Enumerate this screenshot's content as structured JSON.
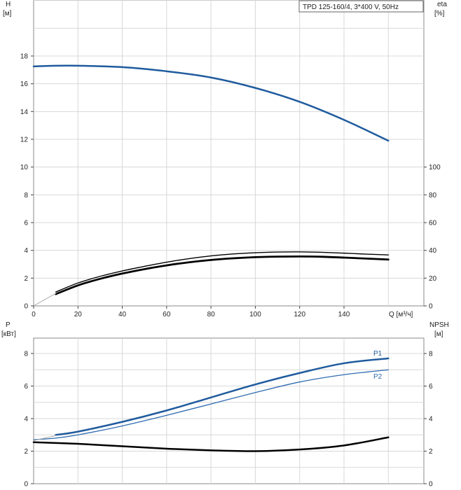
{
  "chart_data": [
    {
      "type": "line",
      "title": "TPD 125-160/4, 3*400 V, 50Hz",
      "xlabel": "Q [м³/ч]",
      "xlim": [
        0,
        160
      ],
      "x_ticks": [
        "0",
        "20",
        "40",
        "60",
        "80",
        "100",
        "120",
        "140"
      ],
      "y_axes": {
        "left": {
          "label_line1": "H",
          "label_line2": "[м]",
          "ylim": [
            0,
            20
          ],
          "ticks": [
            "0",
            "2",
            "4",
            "6",
            "8",
            "10",
            "12",
            "14",
            "16",
            "18"
          ]
        },
        "right": {
          "label_line1": "eta",
          "label_line2": "[%]",
          "ylim": [
            0,
            100
          ],
          "ticks": [
            "0",
            "20",
            "40",
            "60",
            "80",
            "100"
          ]
        }
      },
      "grid": true,
      "series": [
        {
          "axis": "left",
          "color": "#1f5b9e",
          "width": 2.5,
          "points": [
            [
              0,
              17.25
            ],
            [
              10,
              17.3
            ],
            [
              20,
              17.3
            ],
            [
              40,
              17.2
            ],
            [
              60,
              16.9
            ],
            [
              80,
              16.45
            ],
            [
              100,
              15.7
            ],
            [
              120,
              14.7
            ],
            [
              140,
              13.4
            ],
            [
              160,
              11.9
            ]
          ]
        },
        {
          "axis": "right",
          "color": "#000000",
          "width": 1.4,
          "points": [
            [
              10,
              10
            ],
            [
              20,
              16.5
            ],
            [
              30,
              21.3
            ],
            [
              40,
              25.2
            ],
            [
              50,
              28.5
            ],
            [
              60,
              31.5
            ],
            [
              70,
              34
            ],
            [
              80,
              36
            ],
            [
              90,
              37.4
            ],
            [
              100,
              38.3
            ],
            [
              110,
              38.8
            ],
            [
              120,
              38.9
            ],
            [
              130,
              38.6
            ],
            [
              140,
              38
            ],
            [
              150,
              37.3
            ],
            [
              160,
              36.7
            ]
          ]
        },
        {
          "axis": "right",
          "color": "#000000",
          "width": 2.8,
          "points": [
            [
              10,
              8.5
            ],
            [
              20,
              14.8
            ],
            [
              30,
              19.5
            ],
            [
              40,
              23.3
            ],
            [
              50,
              26.5
            ],
            [
              60,
              29.2
            ],
            [
              70,
              31.4
            ],
            [
              80,
              33.1
            ],
            [
              90,
              34.3
            ],
            [
              100,
              35.1
            ],
            [
              110,
              35.5
            ],
            [
              120,
              35.6
            ],
            [
              130,
              35.4
            ],
            [
              140,
              34.8
            ],
            [
              150,
              34.1
            ],
            [
              160,
              33.4
            ]
          ]
        },
        {
          "axis": "right",
          "color": "#aaaaaa",
          "width": 1,
          "points": [
            [
              0,
              0
            ],
            [
              10,
              9
            ]
          ]
        }
      ]
    },
    {
      "type": "line",
      "xlim": [
        0,
        160
      ],
      "y_axes": {
        "left": {
          "label_line1": "P",
          "label_line2": "[кВт]",
          "ylim": [
            0,
            9
          ],
          "ticks": [
            "0",
            "2",
            "4",
            "6",
            "8"
          ]
        },
        "right": {
          "label_line1": "NPSH",
          "label_line2": "[м]",
          "ylim": [
            0,
            9
          ],
          "ticks": [
            "0",
            "2",
            "4",
            "6",
            "8"
          ]
        }
      },
      "grid": true,
      "series": [
        {
          "name": "P1",
          "axis": "left",
          "color": "#1f5b9e",
          "width": 2.5,
          "points": [
            [
              10,
              3.0
            ],
            [
              20,
              3.2
            ],
            [
              40,
              3.8
            ],
            [
              60,
              4.5
            ],
            [
              80,
              5.3
            ],
            [
              100,
              6.1
            ],
            [
              120,
              6.8
            ],
            [
              140,
              7.4
            ],
            [
              160,
              7.7
            ]
          ]
        },
        {
          "name": "P2",
          "axis": "left",
          "color": "#2f6bb0",
          "width": 1.3,
          "points": [
            [
              0,
              2.7
            ],
            [
              10,
              2.8
            ],
            [
              20,
              3.0
            ],
            [
              40,
              3.55
            ],
            [
              60,
              4.2
            ],
            [
              80,
              4.9
            ],
            [
              100,
              5.6
            ],
            [
              120,
              6.25
            ],
            [
              140,
              6.7
            ],
            [
              160,
              7.0
            ]
          ]
        },
        {
          "axis": "right",
          "color": "#000000",
          "width": 2.5,
          "points": [
            [
              0,
              2.55
            ],
            [
              20,
              2.45
            ],
            [
              40,
              2.3
            ],
            [
              60,
              2.15
            ],
            [
              80,
              2.05
            ],
            [
              100,
              2.0
            ],
            [
              120,
              2.1
            ],
            [
              140,
              2.35
            ],
            [
              160,
              2.85
            ]
          ]
        },
        {
          "axis": "left",
          "color": "#aaaaaa",
          "width": 1,
          "points": [
            [
              0,
              2.65
            ],
            [
              10,
              2.95
            ]
          ]
        }
      ],
      "x_ticks": []
    }
  ]
}
